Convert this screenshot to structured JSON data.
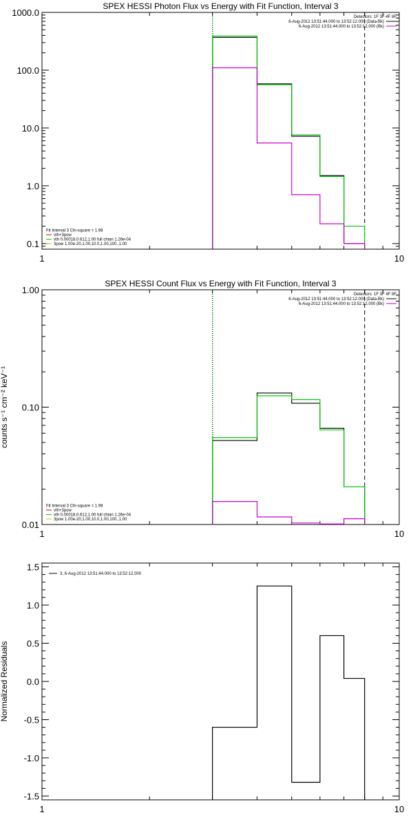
{
  "chart_data": [
    {
      "type": "line",
      "title": "SPEX HESSI Photon Flux vs Energy with Fit Function, Interval 3",
      "xlabel": "",
      "ylabel": "",
      "xscale": "log",
      "yscale": "log",
      "xlim": [
        1,
        10
      ],
      "ylim": [
        0.08,
        1000
      ],
      "xticks": [
        "1",
        "10"
      ],
      "yticks": [
        {
          "value": 1000,
          "label": "1000.0"
        },
        {
          "value": 100,
          "label": "100.0"
        },
        {
          "value": 10,
          "label": "10.0"
        },
        {
          "value": 1,
          "label": "1.0"
        },
        {
          "value": 0.1,
          "label": "0.1"
        }
      ],
      "bin_edges": [
        3,
        4,
        5,
        6,
        7,
        8
      ],
      "series": [
        {
          "name": "Detectors: 1F 3F 4F 8F",
          "color": "#000000",
          "values": [
            370,
            58,
            7.2,
            1.5,
            0.1
          ]
        },
        {
          "name": "vth+3pow",
          "color": "#00cc00",
          "values": [
            390,
            56,
            7.6,
            1.45,
            0.2
          ]
        },
        {
          "name": "",
          "color": "#cc00cc",
          "values": [
            110,
            5.5,
            0.7,
            0.22,
            0.1
          ]
        }
      ],
      "vlines": [
        {
          "x": 3,
          "style": "dotted",
          "color": "#000000"
        },
        {
          "x": 3,
          "style": "dotted",
          "color": "#00cc00"
        },
        {
          "x": 8,
          "style": "dashed",
          "color": "#000000"
        }
      ],
      "legend_top": {
        "placement": "top-right",
        "header": "Detectors: 1F 3F 4F 8F",
        "lines": [
          {
            "text": "6-Aug-2012 13:51:44.000 to 13:52:12.000 (Data-Bk)",
            "color": "#000000"
          },
          {
            "text": "6-Aug-2012 13:51:44.000 to 13:52:12.000 (Bk)",
            "color": "#cc00cc"
          }
        ]
      },
      "legend_bottom": {
        "placement": "bottom-left",
        "lines": [
          {
            "text": "Fit Interval 3   Chi-square = 1.98",
            "color": "#000000",
            "swatch": false
          },
          {
            "text": "vth+3pow",
            "color": "#cc0000",
            "swatch": true
          },
          {
            "text": "vth 0.00018,0.612,1.00   full chian 1.26e-04",
            "color": "#00cc00",
            "swatch": true
          },
          {
            "text": "3pow 1.00e-20,1.00,10.0,1.00,100.,1.00",
            "color": "#cccc00",
            "swatch": true
          }
        ]
      },
      "grid": false
    },
    {
      "type": "line",
      "title": "SPEX HESSI Count Flux vs Energy with Fit Function, Interval 3",
      "xlabel": "",
      "ylabel": "counts s⁻¹ cm⁻² keV⁻¹",
      "xscale": "log",
      "yscale": "log",
      "xlim": [
        1,
        10
      ],
      "ylim": [
        0.01,
        1.0
      ],
      "xticks": [
        "1",
        "10"
      ],
      "yticks": [
        {
          "value": 1.0,
          "label": "1.00"
        },
        {
          "value": 0.1,
          "label": "0.10"
        },
        {
          "value": 0.01,
          "label": "0.01"
        }
      ],
      "bin_edges": [
        3,
        4,
        5,
        6,
        7,
        8
      ],
      "series": [
        {
          "name": "Detectors: 1F 3F 4F 8F",
          "color": "#000000",
          "values": [
            0.052,
            0.132,
            0.108,
            0.066,
            0.021
          ]
        },
        {
          "name": "vth+3pow",
          "color": "#00cc00",
          "values": [
            0.055,
            0.125,
            0.116,
            0.064,
            0.021
          ]
        },
        {
          "name": "",
          "color": "#cc00cc",
          "values": [
            0.0157,
            0.0116,
            0.0103,
            0.0101,
            0.0112
          ]
        }
      ],
      "vlines": [
        {
          "x": 3,
          "style": "dotted",
          "color": "#000000"
        },
        {
          "x": 3,
          "style": "dotted",
          "color": "#00cc00"
        },
        {
          "x": 8,
          "style": "dashed",
          "color": "#000000"
        }
      ],
      "legend_top": {
        "placement": "top-right",
        "header": "Detectors: 1F 3F 4F 8F",
        "lines": [
          {
            "text": "6-Aug-2012 13:51:44.000 to 13:52:12.000 (Data-Bk)",
            "color": "#000000"
          },
          {
            "text": "6-Aug-2012 13:51:44.000 to 13:52:12.000 (Bk)",
            "color": "#cc00cc"
          }
        ]
      },
      "legend_bottom": {
        "placement": "bottom-left",
        "lines": [
          {
            "text": "Fit Interval 3   Chi-square = 1.98",
            "color": "#000000",
            "swatch": false
          },
          {
            "text": "vth+3pow",
            "color": "#cc0000",
            "swatch": true
          },
          {
            "text": "vth 0.00018,0.612,1.00   full chian 1.26e-04",
            "color": "#00cc00",
            "swatch": true
          },
          {
            "text": "3pow 1.00e-20,1.00,10.0,1.00,100.,1.00",
            "color": "#cccc00",
            "swatch": true
          }
        ]
      },
      "grid": false
    },
    {
      "type": "line",
      "title": "",
      "xlabel": "",
      "ylabel": "Normalized Residuals",
      "xscale": "log",
      "yscale": "linear",
      "xlim": [
        1,
        10
      ],
      "ylim": [
        -1.55,
        1.55
      ],
      "xticks": [
        "1",
        "10"
      ],
      "yticks": [
        {
          "value": 1.5,
          "label": "1.5"
        },
        {
          "value": 1.0,
          "label": "1.0"
        },
        {
          "value": 0.5,
          "label": "0.5"
        },
        {
          "value": 0.0,
          "label": "0.0"
        },
        {
          "value": -0.5,
          "label": "-0.5"
        },
        {
          "value": -1.0,
          "label": "-1.0"
        },
        {
          "value": -1.5,
          "label": "-1.5"
        }
      ],
      "bin_edges": [
        3,
        4,
        5,
        6,
        7,
        8
      ],
      "series": [
        {
          "name": "3,  6-Aug-2012 13:51:44.000 to 13:52:12.000",
          "color": "#000000",
          "values": [
            -0.6,
            1.25,
            -1.32,
            0.6,
            0.04
          ]
        }
      ],
      "legend_top": {
        "placement": "top-left",
        "lines": [
          {
            "text": "3,  6-Aug-2012 13:51:44.000 to 13:52:12.000",
            "color": "#000000"
          }
        ]
      },
      "grid": false
    }
  ]
}
